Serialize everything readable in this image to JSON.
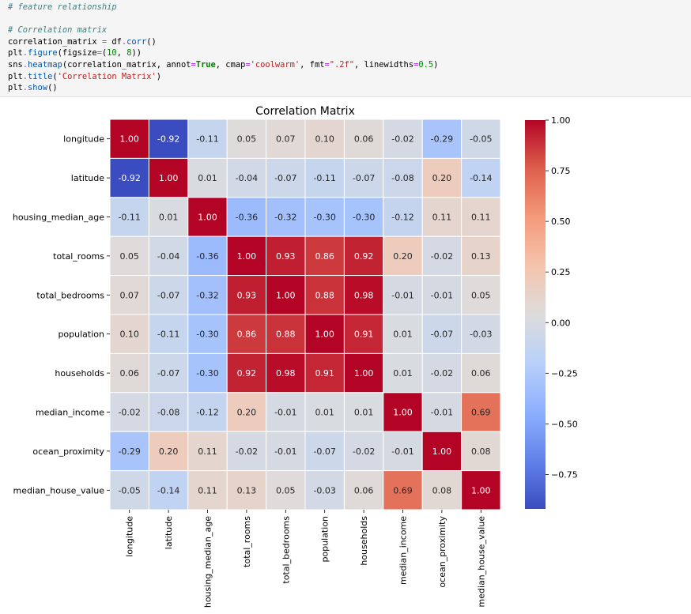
{
  "code_cell": {
    "lines": [
      [
        {
          "t": "# feature relationship",
          "c": "cm"
        }
      ],
      [],
      [
        {
          "t": "# Correlation matrix",
          "c": "cm"
        }
      ],
      [
        {
          "t": "correlation_matrix "
        },
        {
          "t": "=",
          "c": "op"
        },
        {
          "t": " df"
        },
        {
          "t": ".",
          "c": "op"
        },
        {
          "t": "corr",
          "c": "at"
        },
        {
          "t": "()"
        }
      ],
      [
        {
          "t": "plt"
        },
        {
          "t": ".",
          "c": "op"
        },
        {
          "t": "figure",
          "c": "at"
        },
        {
          "t": "(figsize"
        },
        {
          "t": "=",
          "c": "op"
        },
        {
          "t": "("
        },
        {
          "t": "10",
          "c": "nm"
        },
        {
          "t": ", "
        },
        {
          "t": "8",
          "c": "nm"
        },
        {
          "t": "))"
        }
      ],
      [
        {
          "t": "sns"
        },
        {
          "t": ".",
          "c": "op"
        },
        {
          "t": "heatmap",
          "c": "at"
        },
        {
          "t": "(correlation_matrix, annot"
        },
        {
          "t": "=",
          "c": "op"
        },
        {
          "t": "True",
          "c": "kw"
        },
        {
          "t": ", cmap"
        },
        {
          "t": "=",
          "c": "op"
        },
        {
          "t": "'coolwarm'",
          "c": "st"
        },
        {
          "t": ", fmt"
        },
        {
          "t": "=",
          "c": "op"
        },
        {
          "t": "\".2f\"",
          "c": "st"
        },
        {
          "t": ", linewidths"
        },
        {
          "t": "=",
          "c": "op"
        },
        {
          "t": "0.5",
          "c": "nm"
        },
        {
          "t": ")"
        }
      ],
      [
        {
          "t": "plt"
        },
        {
          "t": ".",
          "c": "op"
        },
        {
          "t": "title",
          "c": "at"
        },
        {
          "t": "("
        },
        {
          "t": "'Correlation Matrix'",
          "c": "st"
        },
        {
          "t": ")"
        }
      ],
      [
        {
          "t": "plt"
        },
        {
          "t": ".",
          "c": "op"
        },
        {
          "t": "show",
          "c": "at"
        },
        {
          "t": "()"
        }
      ]
    ]
  },
  "chart_data": {
    "type": "heatmap",
    "title": "Correlation Matrix",
    "colormap": "coolwarm",
    "colors": {
      "low": "#3b4cc0",
      "mid": "#dddcdc",
      "high": "#b40426"
    },
    "value_range": [
      -0.92,
      1.0
    ],
    "labels": [
      "longitude",
      "latitude",
      "housing_median_age",
      "total_rooms",
      "total_bedrooms",
      "population",
      "households",
      "median_income",
      "ocean_proximity",
      "median_house_value"
    ],
    "matrix": [
      [
        1.0,
        -0.92,
        -0.11,
        0.05,
        0.07,
        0.1,
        0.06,
        -0.02,
        -0.29,
        -0.05
      ],
      [
        -0.92,
        1.0,
        0.01,
        -0.04,
        -0.07,
        -0.11,
        -0.07,
        -0.08,
        0.2,
        -0.14
      ],
      [
        -0.11,
        0.01,
        1.0,
        -0.36,
        -0.32,
        -0.3,
        -0.3,
        -0.12,
        0.11,
        0.11
      ],
      [
        0.05,
        -0.04,
        -0.36,
        1.0,
        0.93,
        0.86,
        0.92,
        0.2,
        -0.02,
        0.13
      ],
      [
        0.07,
        -0.07,
        -0.32,
        0.93,
        1.0,
        0.88,
        0.98,
        -0.01,
        -0.01,
        0.05
      ],
      [
        0.1,
        -0.11,
        -0.3,
        0.86,
        0.88,
        1.0,
        0.91,
        0.01,
        -0.07,
        -0.03
      ],
      [
        0.06,
        -0.07,
        -0.3,
        0.92,
        0.98,
        0.91,
        1.0,
        0.01,
        -0.02,
        0.06
      ],
      [
        -0.02,
        -0.08,
        -0.12,
        0.2,
        -0.01,
        0.01,
        0.01,
        1.0,
        -0.01,
        0.69
      ],
      [
        -0.29,
        0.2,
        0.11,
        -0.02,
        -0.01,
        -0.07,
        -0.02,
        -0.01,
        1.0,
        0.08
      ],
      [
        -0.05,
        -0.14,
        0.11,
        0.13,
        0.05,
        -0.03,
        0.06,
        0.69,
        0.08,
        1.0
      ]
    ],
    "colorbar_ticks": [
      1.0,
      0.75,
      0.5,
      0.25,
      0.0,
      -0.25,
      -0.5,
      -0.75
    ],
    "colorbar_tick_labels": [
      "1.00",
      "0.75",
      "0.50",
      "0.25",
      "0.00",
      "−0.25",
      "−0.50",
      "−0.75"
    ]
  }
}
